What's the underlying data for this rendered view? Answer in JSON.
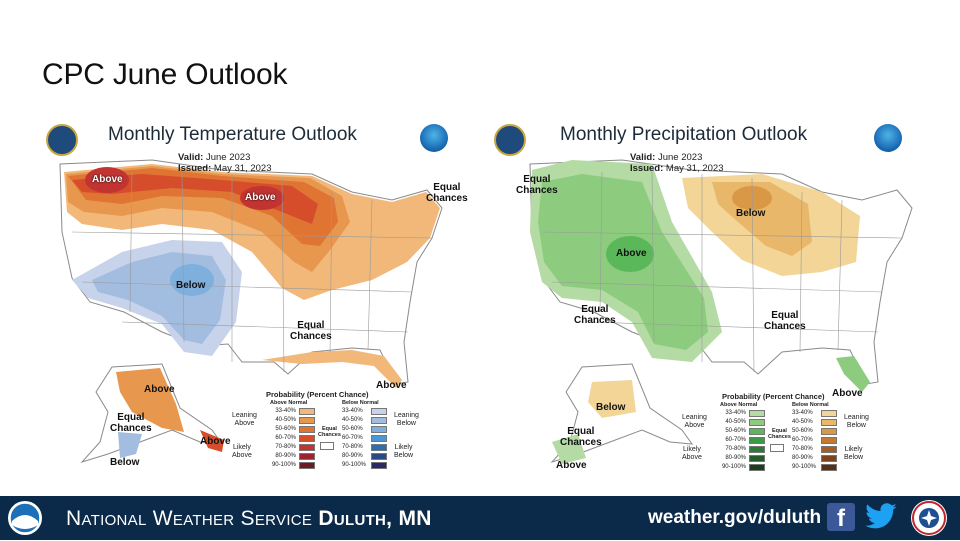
{
  "slide": {
    "title": "CPC June Outlook"
  },
  "temperature": {
    "title": "Monthly Temperature Outlook",
    "valid_label": "Valid:",
    "valid_value": "June 2023",
    "issued_label": "Issued:",
    "issued_value": "May 31, 2023",
    "labels": {
      "above_nw": "Above",
      "above_north": "Above",
      "below_sw": "Below",
      "equal_ne": "Equal\nChances",
      "equal_south": "Equal\nChances",
      "above_fl": "Above",
      "above_ak": "Above",
      "equal_ak": "Equal\nChances",
      "above_ak_se": "Above",
      "below_ak": "Below"
    },
    "legend": {
      "title": "Probability (Percent Chance)",
      "above_header": "Above Normal",
      "below_header": "Below Normal",
      "leaning_above": "Leaning\nAbove",
      "likely_above": "Likely\nAbove",
      "leaning_below": "Leaning\nBelow",
      "likely_below": "Likely\nBelow",
      "equal": "Equal\nChances",
      "ranges": [
        "33-40%",
        "40-50%",
        "50-60%",
        "60-70%",
        "70-80%",
        "80-90%",
        "90-100%"
      ],
      "above_colors": [
        "#f1b87a",
        "#e8974f",
        "#e07433",
        "#d64d2c",
        "#c23431",
        "#9a2530",
        "#6a1b24"
      ],
      "below_colors": [
        "#c7d3ea",
        "#a3bde0",
        "#7fb0dd",
        "#4b96d3",
        "#2a6fb3",
        "#284b86",
        "#292a66"
      ]
    }
  },
  "precipitation": {
    "title": "Monthly Precipitation Outlook",
    "valid_label": "Valid:",
    "valid_value": "June 2023",
    "issued_label": "Issued:",
    "issued_value": "May 31, 2023",
    "labels": {
      "equal_nw": "Equal\nChances",
      "below_gl": "Below",
      "above_center": "Above",
      "equal_sw": "Equal\nChances",
      "equal_se": "Equal\nChances",
      "above_fl": "Above",
      "below_ak": "Below",
      "equal_ak": "Equal\nChances",
      "above_ak": "Above"
    },
    "legend": {
      "title": "Probability (Percent Chance)",
      "above_header": "Above Normal",
      "below_header": "Below Normal",
      "leaning_above": "Leaning\nAbove",
      "likely_above": "Likely\nAbove",
      "leaning_below": "Leaning\nBelow",
      "likely_below": "Likely\nBelow",
      "equal": "Equal\nChances",
      "ranges": [
        "33-40%",
        "40-50%",
        "50-60%",
        "60-70%",
        "70-80%",
        "80-90%",
        "90-100%"
      ],
      "above_colors": [
        "#b3dba3",
        "#8dcc7e",
        "#5ab85a",
        "#3a9a45",
        "#2b7a37",
        "#235c2a",
        "#1b3f1e"
      ],
      "below_colors": [
        "#f2d597",
        "#e8b76a",
        "#d99846",
        "#c57a34",
        "#a55e27",
        "#7e451d",
        "#5a3014"
      ]
    }
  },
  "footer": {
    "agency_pre": "National Weather Service",
    "agency_office": "Duluth, MN",
    "url": "weather.gov/duluth",
    "facebook": "f"
  },
  "colors": {
    "footer_bg": "#0b2949",
    "map_land": "#ffffff",
    "map_border": "#8a8a8a"
  }
}
